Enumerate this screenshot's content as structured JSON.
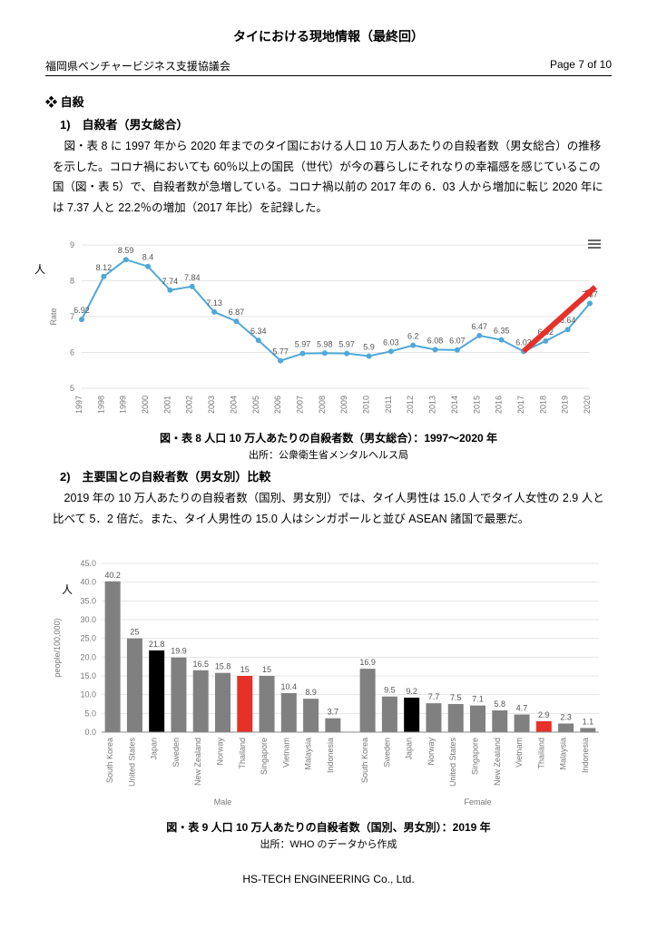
{
  "page": {
    "title": "タイにおける現地情報（最終回）",
    "header_left": "福岡県ベンチャービジネス支援協議会",
    "header_right": "Page 7 of 10",
    "footer": "HS-TECH ENGINEERING Co., Ltd."
  },
  "section": {
    "head": "❖ 自殺",
    "sub1": "1)　自殺者（男女総合）",
    "para1": "図・表 8 に 1997 年から 2020 年までのタイ国における人口 10 万人あたりの自殺者数（男女総合）の推移を示した。コロナ禍においても 60％以上の国民（世代）が今の暮らしにそれなりの幸福感を感じているこの国（図・表 5）で、自殺者数が急増している。コロナ禍以前の 2017 年の 6．03 人から増加に転じ 2020 年には 7.37 人と 22.2％の増加（2017 年比）を記録した。",
    "sub2": "2)　主要国との自殺者数（男女別）比較",
    "para2": "2019 年の 10 万人あたりの自殺者数（国別、男女別）では、タイ人男性は 15.0 人でタイ人女性の 2.9 人と比べて 5．2 倍だ。また、タイ人男性の 15.0 人はシンガポールと並び ASEAN 諸国で最悪だ。"
  },
  "lineChart": {
    "caption": "図・表 8 人口 10 万人あたりの自殺者数（男女総合）：1997～2020 年",
    "source": "出所：公衆衛生省メンタルヘルス局",
    "y_unit": "人",
    "x_axis_label": "Rate",
    "line_color": "#4fa8d8",
    "marker_color": "#4fa8d8",
    "arrow_color": "#e5312a",
    "grid_color": "#e5e5e5",
    "background": "#ffffff",
    "ylim": [
      5,
      9
    ],
    "ytick_step": 1,
    "years": [
      "1997",
      "1998",
      "1999",
      "2000",
      "2001",
      "2002",
      "2003",
      "2004",
      "2005",
      "2006",
      "2007",
      "2008",
      "2009",
      "2010",
      "2011",
      "2012",
      "2013",
      "2014",
      "2015",
      "2016",
      "2017",
      "2018",
      "2019",
      "2020"
    ],
    "values": [
      6.92,
      8.12,
      8.59,
      8.4,
      7.74,
      7.84,
      7.13,
      6.87,
      6.34,
      5.77,
      5.97,
      5.98,
      5.97,
      5.9,
      6.03,
      6.2,
      6.08,
      6.07,
      6.47,
      6.35,
      6.03,
      6.32,
      6.64,
      7.37
    ]
  },
  "barChart": {
    "caption": "図・表 9 人口 10 万人あたりの自殺者数（国別、男女別）：2019 年",
    "source": "出所：WHO のデータから作成",
    "y_unit": "人",
    "y_axis_label": "people/100,000)",
    "grid_color": "#e5e5e5",
    "ylim": [
      0,
      45
    ],
    "ytick_step": 5,
    "group_labels": [
      "Male",
      "Female"
    ],
    "male": {
      "countries": [
        "South Korea",
        "United States",
        "Japan",
        "Sweden",
        "New Zealand",
        "Norway",
        "Thailand",
        "Singapore",
        "Vietnam",
        "Malaysia",
        "Indonesia"
      ],
      "values": [
        40.2,
        25.0,
        21.8,
        19.9,
        16.5,
        15.8,
        15.0,
        15.0,
        10.4,
        8.9,
        3.7
      ],
      "colors": [
        "#808080",
        "#808080",
        "#000000",
        "#808080",
        "#808080",
        "#808080",
        "#e5312a",
        "#808080",
        "#808080",
        "#808080",
        "#808080"
      ],
      "label_colors": [
        "#555",
        "#555",
        "#555",
        "#555",
        "#555",
        "#555",
        "#e5312a",
        "#555",
        "#555",
        "#555",
        "#555"
      ]
    },
    "female": {
      "countries": [
        "South Korea",
        "Sweden",
        "Japan",
        "Norway",
        "United States",
        "Singapore",
        "New Zealand",
        "Vietnam",
        "Thailand",
        "Malaysia",
        "Indonesia"
      ],
      "values": [
        16.9,
        9.5,
        9.2,
        7.7,
        7.5,
        7.1,
        5.8,
        4.7,
        2.9,
        2.3,
        1.1
      ],
      "colors": [
        "#808080",
        "#808080",
        "#000000",
        "#808080",
        "#808080",
        "#808080",
        "#808080",
        "#808080",
        "#e5312a",
        "#808080",
        "#808080"
      ],
      "label_colors": [
        "#555",
        "#555",
        "#555",
        "#555",
        "#555",
        "#555",
        "#555",
        "#555",
        "#e5312a",
        "#555",
        "#555"
      ]
    }
  }
}
